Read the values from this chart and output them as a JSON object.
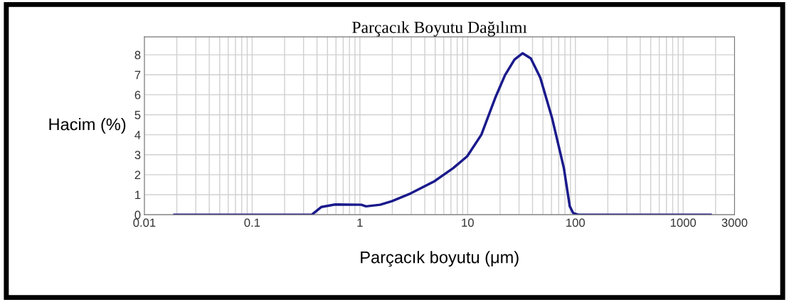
{
  "chart_data": {
    "type": "line",
    "title": "Parçacık Boyutu Dağılımı",
    "xlabel": "Parçacık boyutu (μm)",
    "ylabel": "Hacim (%)",
    "log": "x",
    "grid": true,
    "legend": false,
    "marker": "none",
    "line_style": "solid",
    "xlim": [
      0.01,
      3000
    ],
    "ylim": [
      0,
      8.9
    ],
    "xticks": [
      0.01,
      0.1,
      1,
      10,
      100,
      1000,
      3000
    ],
    "yticks": [
      0,
      1,
      2,
      3,
      4,
      5,
      6,
      7,
      8
    ],
    "series": [
      {
        "color": "#1a1a8c",
        "x": [
          0.019,
          0.1,
          0.358,
          0.44,
          0.59,
          1.03,
          1.14,
          1.54,
          1.98,
          2.97,
          4.9,
          7.34,
          9.9,
          13.4,
          18.2,
          22.2,
          27.2,
          32.4,
          38.6,
          47.2,
          60.8,
          78.2,
          88.7,
          95.5,
          106,
          500,
          1800
        ],
        "values": [
          0,
          0,
          0,
          0.39,
          0.51,
          0.5,
          0.42,
          0.5,
          0.68,
          1.07,
          1.67,
          2.33,
          2.92,
          4.0,
          5.9,
          6.98,
          7.76,
          8.08,
          7.82,
          6.86,
          4.83,
          2.33,
          0.42,
          0.08,
          0,
          0,
          0
        ]
      }
    ]
  }
}
